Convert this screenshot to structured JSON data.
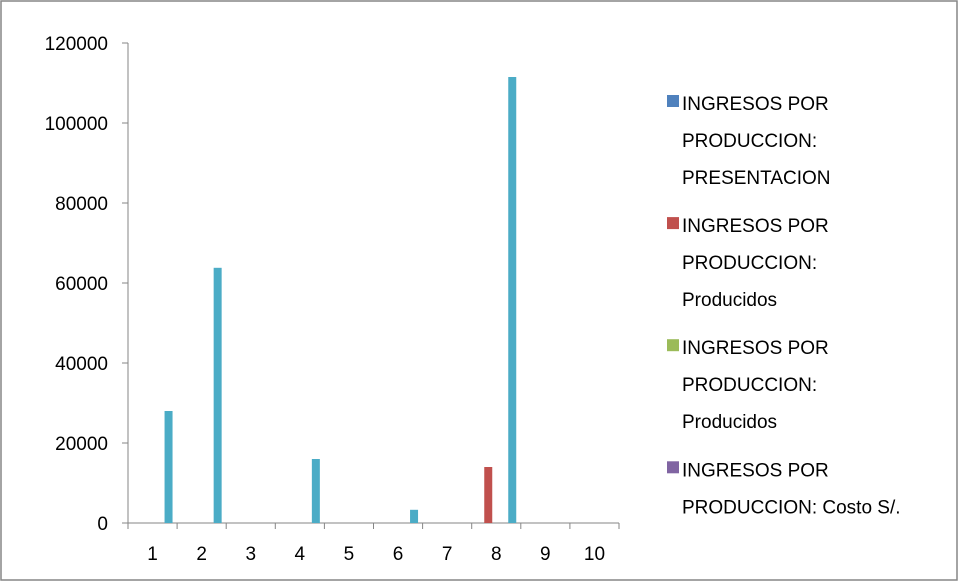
{
  "chart_data": {
    "type": "bar",
    "categories": [
      "1",
      "2",
      "3",
      "4",
      "5",
      "6",
      "7",
      "8",
      "9",
      "10"
    ],
    "series": [
      {
        "name": "INGRESOS POR PRODUCCION: PRESENTACION",
        "legend_lines": [
          "INGRESOS POR",
          "PRODUCCION:",
          "PRESENTACION"
        ],
        "color": "#4f81bd",
        "values": [
          0,
          0,
          0,
          0,
          0,
          0,
          0,
          0,
          0,
          0
        ]
      },
      {
        "name": "INGRESOS POR PRODUCCION: Producidos",
        "legend_lines": [
          "INGRESOS POR",
          "PRODUCCION:",
          "Producidos"
        ],
        "color": "#c0504d",
        "values": [
          0,
          0,
          0,
          0,
          0,
          0,
          0,
          14000,
          0,
          0
        ]
      },
      {
        "name": "INGRESOS POR PRODUCCION: Producidos",
        "legend_lines": [
          "INGRESOS POR",
          "PRODUCCION:",
          "Producidos"
        ],
        "color": "#9bbb59",
        "values": [
          0,
          0,
          0,
          0,
          0,
          0,
          0,
          0,
          0,
          0
        ]
      },
      {
        "name": "INGRESOS POR PRODUCCION:  Costo S/.",
        "legend_lines": [
          "INGRESOS POR",
          "PRODUCCION:  Costo S/."
        ],
        "color": "#8064a2",
        "values": [
          0,
          0,
          0,
          0,
          0,
          0,
          0,
          0,
          0,
          0
        ]
      },
      {
        "color": "#4bacc6",
        "values": [
          28000,
          63800,
          0,
          16000,
          0,
          3300,
          0,
          111500,
          0,
          0
        ]
      }
    ],
    "ylim": [
      0,
      120000
    ],
    "yticks": [
      "0",
      "20000",
      "40000",
      "60000",
      "80000",
      "100000",
      "120000"
    ],
    "grid": false,
    "legend_position": "right"
  }
}
